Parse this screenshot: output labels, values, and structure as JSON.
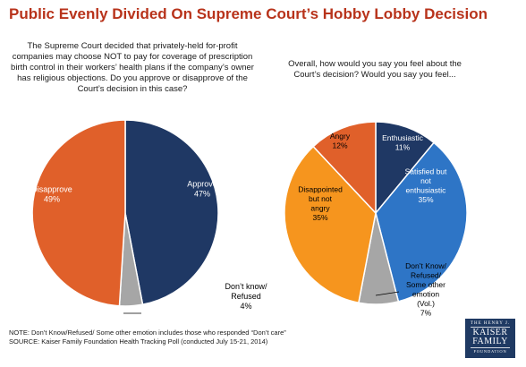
{
  "title": "Public Evenly Divided On Supreme Court’s Hobby Lobby Decision",
  "questions": {
    "left": "The Supreme Court decided that privately-held for-profit companies may choose NOT to pay for coverage of prescription birth control in their workers’ health plans if the company’s owner has religious objections. Do you approve or disapprove of the Court’s decision in this case?",
    "right": "Overall, how would you say you feel about the Court’s decision? Would you say you feel..."
  },
  "chart_data": [
    {
      "type": "pie",
      "slices": [
        {
          "label": [
            "Approve"
          ],
          "value": 47,
          "value_label": "47%",
          "color": "#1f3864"
        },
        {
          "label": [
            "Don’t know/",
            "Refused"
          ],
          "value": 4,
          "value_label": "4%",
          "color": "#a6a6a6"
        },
        {
          "label": [
            "Disapprove"
          ],
          "value": 49,
          "value_label": "49%",
          "color": "#e0602a"
        }
      ]
    },
    {
      "type": "pie",
      "slices": [
        {
          "label": [
            "Enthusiastic"
          ],
          "value": 11,
          "value_label": "11%",
          "color": "#1f3864"
        },
        {
          "label": [
            "Satisfied but",
            "not",
            "enthusiastic"
          ],
          "value": 35,
          "value_label": "35%",
          "color": "#2e75c6"
        },
        {
          "label": [
            "Don’t Know/",
            "Refused/",
            "Some other",
            "emotion",
            "(Vol.)"
          ],
          "value": 7,
          "value_label": "7%",
          "color": "#a6a6a6"
        },
        {
          "label": [
            "Disappointed",
            "but not",
            "angry"
          ],
          "value": 35,
          "value_label": "35%",
          "color": "#f6951e"
        },
        {
          "label": [
            "Angry"
          ],
          "value": 12,
          "value_label": "12%",
          "color": "#e0602a"
        }
      ]
    }
  ],
  "footnote": {
    "note": "NOTE: Don’t Know/Refused/ Some other emotion includes those who responded “Don’t care”",
    "source": "SOURCE: Kaiser Family Foundation Health Tracking Poll (conducted July 15-21, 2014)"
  },
  "logo": {
    "line1": "THE HENRY J.",
    "line2a": "KAISER",
    "line2b": "FAMILY",
    "line3": "FOUNDATION"
  }
}
